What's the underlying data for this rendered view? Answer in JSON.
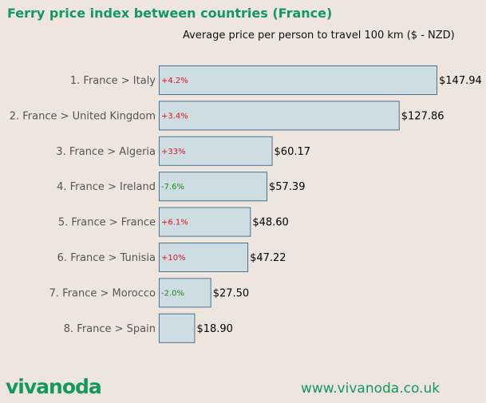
{
  "header": {
    "title": "Ferry price index between countries (France)",
    "subtitle": "Average price per person to travel 100 km ($ - NZD)"
  },
  "chart_data": {
    "type": "bar",
    "orientation": "horizontal",
    "title": "Ferry price index between countries (France)",
    "subtitle": "Average price per person to travel 100 km ($ - NZD)",
    "categories": [
      "1. France > Italy",
      "2. France > United Kingdom",
      "3. France > Algeria",
      "4. France > Ireland",
      "5. France > France",
      "6. France > Tunisia",
      "7. France > Morocco",
      "8. France > Spain"
    ],
    "values": [
      147.94,
      127.86,
      60.17,
      57.39,
      48.6,
      47.22,
      27.5,
      18.9
    ],
    "value_labels": [
      "$147.94",
      "$127.86",
      "$60.17",
      "$57.39",
      "$48.60",
      "$47.22",
      "$27.50",
      "$18.90"
    ],
    "changes": [
      "+4.2%",
      "+3.4%",
      "+33%",
      "-7.6%",
      "+6.1%",
      "+10%",
      "-2.0%",
      ""
    ],
    "xlim": [
      0,
      147.94
    ],
    "grid": false,
    "colors": {
      "bar_fill": "#cddde2",
      "bar_stroke": "#4a7391",
      "increase": "#e0141e",
      "decrease": "#1e8c1e",
      "category_label": "#555555"
    }
  },
  "footer": {
    "logo": "vivanoda",
    "website": "www.vivanoda.co.uk"
  }
}
